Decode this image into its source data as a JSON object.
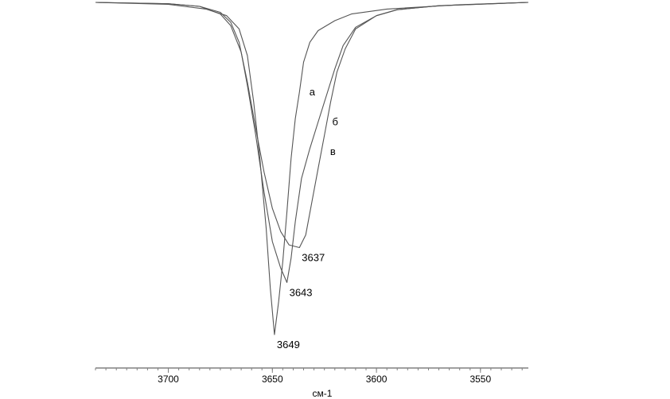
{
  "chart_data": {
    "type": "line",
    "xlabel": "см-1",
    "xlim": [
      3735,
      3527
    ],
    "x_ticks": [
      3700,
      3650,
      3600,
      3550
    ],
    "x_tick_labels": [
      "3700",
      "3650",
      "3600",
      "3550"
    ],
    "grid": false,
    "legend": "none",
    "series": [
      {
        "name": "а",
        "label_at": [
          3633,
          0.27
        ],
        "points": [
          [
            3735,
            0.0
          ],
          [
            3700,
            0.006
          ],
          [
            3682,
            0.02
          ],
          [
            3672,
            0.04
          ],
          [
            3666,
            0.08
          ],
          [
            3662,
            0.16
          ],
          [
            3659,
            0.3
          ],
          [
            3656,
            0.47
          ],
          [
            3653,
            0.68
          ],
          [
            3651,
            0.86
          ],
          [
            3649,
            1.0
          ],
          [
            3647,
            0.9
          ],
          [
            3645,
            0.78
          ],
          [
            3643,
            0.63
          ],
          [
            3641,
            0.47
          ],
          [
            3639,
            0.35
          ],
          [
            3637,
            0.27
          ],
          [
            3635,
            0.18
          ],
          [
            3632,
            0.12
          ],
          [
            3628,
            0.085
          ],
          [
            3620,
            0.055
          ],
          [
            3612,
            0.035
          ],
          [
            3595,
            0.02
          ],
          [
            3560,
            0.007
          ],
          [
            3527,
            0.0
          ]
        ]
      },
      {
        "name": "б",
        "label_at": [
          3622,
          0.36
        ],
        "points": [
          [
            3735,
            0.0
          ],
          [
            3700,
            0.004
          ],
          [
            3685,
            0.012
          ],
          [
            3675,
            0.035
          ],
          [
            3670,
            0.07
          ],
          [
            3665,
            0.15
          ],
          [
            3662,
            0.25
          ],
          [
            3658,
            0.4
          ],
          [
            3654,
            0.57
          ],
          [
            3650,
            0.72
          ],
          [
            3646,
            0.8
          ],
          [
            3643,
            0.843
          ],
          [
            3641,
            0.77
          ],
          [
            3639,
            0.66
          ],
          [
            3636,
            0.53
          ],
          [
            3632,
            0.44
          ],
          [
            3628,
            0.36
          ],
          [
            3624,
            0.28
          ],
          [
            3620,
            0.2
          ],
          [
            3616,
            0.13
          ],
          [
            3610,
            0.075
          ],
          [
            3600,
            0.04
          ],
          [
            3590,
            0.022
          ],
          [
            3570,
            0.01
          ],
          [
            3527,
            0.0
          ]
        ]
      },
      {
        "name": "в",
        "label_at": [
          3623,
          0.45
        ],
        "points": [
          [
            3735,
            0.0
          ],
          [
            3700,
            0.004
          ],
          [
            3685,
            0.012
          ],
          [
            3675,
            0.03
          ],
          [
            3670,
            0.06
          ],
          [
            3666,
            0.12
          ],
          [
            3662,
            0.24
          ],
          [
            3658,
            0.38
          ],
          [
            3654,
            0.51
          ],
          [
            3650,
            0.62
          ],
          [
            3646,
            0.69
          ],
          [
            3642,
            0.73
          ],
          [
            3637,
            0.738
          ],
          [
            3634,
            0.7
          ],
          [
            3631,
            0.6
          ],
          [
            3628,
            0.5
          ],
          [
            3625,
            0.4
          ],
          [
            3622,
            0.3
          ],
          [
            3619,
            0.21
          ],
          [
            3615,
            0.14
          ],
          [
            3610,
            0.08
          ],
          [
            3600,
            0.04
          ],
          [
            3590,
            0.022
          ],
          [
            3570,
            0.01
          ],
          [
            3527,
            0.0
          ]
        ]
      }
    ],
    "peak_annotations": [
      {
        "text": "3649",
        "x": 3649,
        "y": 1.0
      },
      {
        "text": "3643",
        "x": 3643,
        "y": 0.843
      },
      {
        "text": "3637",
        "x": 3637,
        "y": 0.738
      }
    ],
    "colors": {
      "line": "#555555",
      "axis": "#808080",
      "text": "#000000"
    }
  }
}
